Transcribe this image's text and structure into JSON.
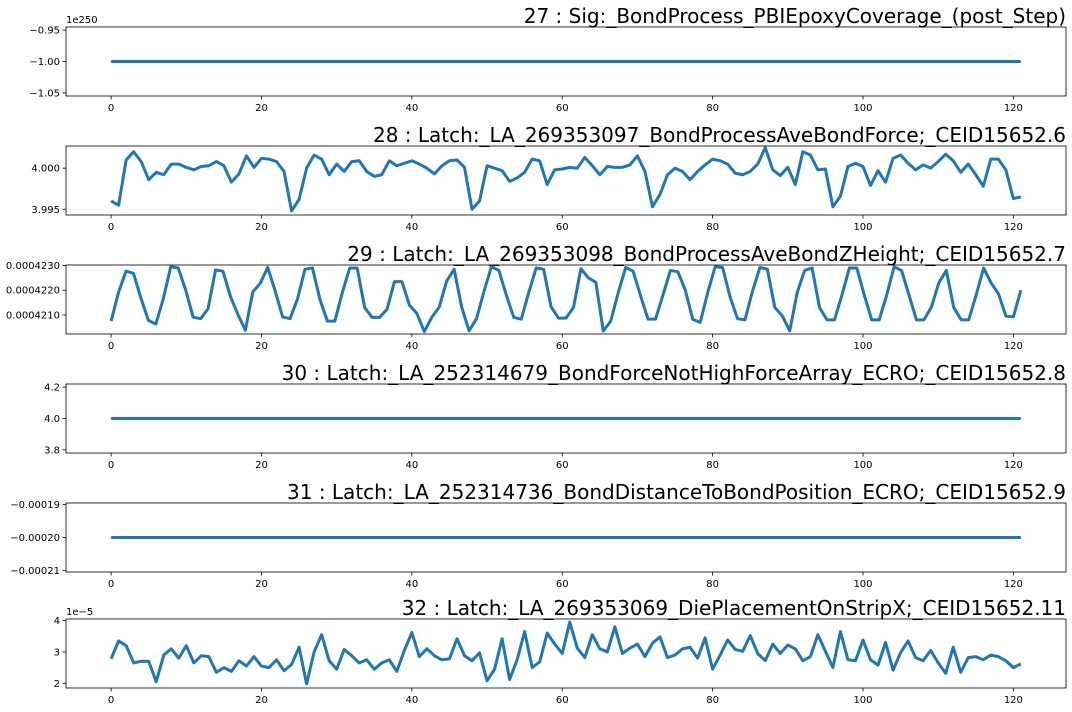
{
  "chart_data": [
    {
      "type": "line",
      "title": "27 : Sig:_BondProcess_PBIEpoxyCoverage_(post_Step)",
      "y_offset_text": "1e250",
      "ylim": [
        -1.055,
        -0.945
      ],
      "xlim": [
        -6,
        127
      ],
      "x_ticks": [
        0,
        20,
        40,
        60,
        80,
        100,
        120
      ],
      "y_ticks": [
        -1.05,
        -1.0,
        -0.95
      ],
      "y_tick_labels": [
        "−1.05",
        "−1.00",
        "−0.95"
      ],
      "x_range": [
        0,
        121
      ],
      "series": [
        {
          "values": [
            -1.0,
            -1.0
          ]
        }
      ]
    },
    {
      "type": "line",
      "title": "28 : Latch:_LA_269353097_BondProcessAveBondForce;_CEID15652.6",
      "y_offset_text": "",
      "ylim": [
        3.9943,
        4.0027
      ],
      "xlim": [
        -6,
        127
      ],
      "x_ticks": [
        0,
        20,
        40,
        60,
        80,
        100,
        120
      ],
      "y_ticks": [
        3.995,
        4.0
      ],
      "y_tick_labels": [
        "3.995",
        "4.000"
      ],
      "x_range": [
        0,
        121
      ],
      "series": [
        {
          "values": [
            3.996,
            3.9955,
            4.001,
            4.002,
            4.0008,
            3.9986,
            3.9995,
            3.9992,
            4.0005,
            4.0005,
            4.0001,
            3.9998,
            4.0002,
            4.0003,
            4.0008,
            4.0003,
            3.9983,
            3.9993,
            4.0015,
            4.0001,
            4.0012,
            4.0011,
            4.0008,
            3.9996,
            3.9948,
            3.9962,
            4.0,
            4.0016,
            4.0011,
            3.9992,
            4.0005,
            3.9996,
            4.0008,
            4.0009,
            3.9996,
            3.999,
            3.9992,
            4.0009,
            4.0003,
            4.0006,
            4.0009,
            4.0005,
            4.0,
            3.9993,
            4.0003,
            4.0009,
            4.001,
            4.0001,
            3.995,
            3.996,
            4.0003,
            4.0,
            3.9997,
            3.9984,
            3.9988,
            3.9995,
            4.0011,
            4.0009,
            3.998,
            3.9998,
            3.9999,
            4.0001,
            4.0,
            4.0013,
            4.0003,
            3.9992,
            4.0002,
            4.0001,
            4.0001,
            4.0004,
            4.0015,
            3.9996,
            3.9953,
            3.9968,
            3.9992,
            4.0,
            3.9996,
            3.9986,
            3.9996,
            4.0004,
            4.0011,
            4.0009,
            4.0005,
            3.9994,
            3.9992,
            3.9996,
            4.0005,
            4.0025,
            3.9998,
            3.9991,
            4.0001,
            3.998,
            4.002,
            4.0016,
            3.9998,
            3.9999,
            3.9953,
            3.9966,
            4.0002,
            4.0006,
            4.0002,
            3.9979,
            3.9997,
            3.9983,
            4.0012,
            4.0016,
            4.0006,
            3.9998,
            4.0004,
            4.0,
            4.0008,
            4.0017,
            4.0009,
            3.9995,
            4.0005,
            3.9992,
            3.9978,
            4.0011,
            4.0011,
            3.9998,
            3.9963,
            3.9965
          ]
        }
      ]
    },
    {
      "type": "line",
      "title": "29 : Latch:_LA_269353098_BondProcessAveBondZHeight;_CEID15652.7",
      "y_offset_text": "",
      "ylim": [
        0.00042023,
        0.00042302
      ],
      "xlim": [
        -6,
        127
      ],
      "x_ticks": [
        0,
        20,
        40,
        60,
        80,
        100,
        120
      ],
      "y_ticks": [
        0.000421,
        0.000422,
        0.000423
      ],
      "y_tick_labels": [
        "0.0004210",
        "0.0004220",
        "0.0004230"
      ],
      "x_range": [
        0,
        121
      ],
      "series": [
        {
          "values": [
            0.00042075,
            0.000421918,
            0.000422773,
            0.000422678,
            0.000421679,
            0.00042078,
            0.00042063,
            0.00042166,
            0.00042295,
            0.0004229,
            0.00042201,
            0.00042091,
            0.00042085,
            0.00042125,
            0.00042282,
            0.00042277,
            0.00042175,
            0.00042102,
            0.00042038,
            0.00042193,
            0.00042228,
            0.00042292,
            0.00042197,
            0.00042092,
            0.00042085,
            0.00042165,
            0.00042285,
            0.0004229,
            0.00042163,
            0.00042075,
            0.00042075,
            0.0004219,
            0.0004229,
            0.0004229,
            0.0004213,
            0.0004209,
            0.0004209,
            0.00042123,
            0.00042235,
            0.00042235,
            0.0004214,
            0.00042106,
            0.00042033,
            0.0004209,
            0.00042132,
            0.00042237,
            0.00042285,
            0.00042133,
            0.00042036,
            0.00042085,
            0.00042195,
            0.00042295,
            0.0004228,
            0.0004218,
            0.0004209,
            0.00042083,
            0.0004219,
            0.0004229,
            0.00042285,
            0.00042133,
            0.00042087,
            0.00042087,
            0.0004213,
            0.00042287,
            0.0004225,
            0.00042232,
            0.00042035,
            0.00042075,
            0.0004219,
            0.00042292,
            0.00042277,
            0.00042178,
            0.00042083,
            0.00042083,
            0.0004218,
            0.0004228,
            0.00042275,
            0.000422,
            0.00042082,
            0.0004207,
            0.0004219,
            0.00042295,
            0.00042292,
            0.00042173,
            0.00042085,
            0.0004208,
            0.00042195,
            0.00042292,
            0.00042285,
            0.0004213,
            0.00042097,
            0.00042035,
            0.0004219,
            0.0004228,
            0.0004229,
            0.0004213,
            0.0004208,
            0.0004208,
            0.0004218,
            0.0004229,
            0.0004229,
            0.0004218,
            0.0004208,
            0.0004208,
            0.0004218,
            0.00042295,
            0.0004228,
            0.0004218,
            0.0004208,
            0.0004208,
            0.00042132,
            0.0004223,
            0.0004228,
            0.0004213,
            0.0004208,
            0.0004208,
            0.0004218,
            0.0004229,
            0.0004223,
            0.00042185,
            0.00042095,
            0.00042093,
            0.000422
          ]
        }
      ]
    },
    {
      "type": "line",
      "title": "30 : Latch:_LA_252314679_BondForceNotHighForceArray_ECRO;_CEID15652.8",
      "y_offset_text": "",
      "ylim": [
        3.78,
        4.22
      ],
      "xlim": [
        -6,
        127
      ],
      "x_ticks": [
        0,
        20,
        40,
        60,
        80,
        100,
        120
      ],
      "y_ticks": [
        3.8,
        4.0,
        4.2
      ],
      "y_tick_labels": [
        "3.8",
        "4.0",
        "4.2"
      ],
      "x_range": [
        0,
        121
      ],
      "series": [
        {
          "values": [
            4.0,
            4.0
          ]
        }
      ]
    },
    {
      "type": "line",
      "title": "31 : Latch:_LA_252314736_BondDistanceToBondPosition_ECRO;_CEID15652.9",
      "y_offset_text": "",
      "ylim": [
        -0.0002105,
        -0.0001895
      ],
      "xlim": [
        -6,
        127
      ],
      "x_ticks": [
        0,
        20,
        40,
        60,
        80,
        100,
        120
      ],
      "y_ticks": [
        -0.00021,
        -0.0002,
        -0.00019
      ],
      "y_tick_labels": [
        "−0.00021",
        "−0.00020",
        "−0.00019"
      ],
      "x_range": [
        0,
        121
      ],
      "series": [
        {
          "values": [
            -0.0002,
            -0.0002
          ]
        }
      ]
    },
    {
      "type": "line",
      "title": "32 : Latch:_LA_269353069_DiePlacementOnStripX;_CEID15652.11",
      "y_offset_text": "1e−5",
      "ylim": [
        1.85,
        4.05
      ],
      "xlim": [
        -6,
        127
      ],
      "x_ticks": [
        0,
        20,
        40,
        60,
        80,
        100,
        120
      ],
      "y_ticks": [
        2,
        3,
        4
      ],
      "y_tick_labels": [
        "2",
        "3",
        "4"
      ],
      "x_range": [
        0,
        121
      ],
      "series": [
        {
          "values": [
            2.78,
            3.35,
            3.2,
            2.65,
            2.7,
            2.7,
            2.05,
            2.9,
            3.1,
            2.8,
            3.2,
            2.65,
            2.88,
            2.85,
            2.35,
            2.5,
            2.38,
            2.72,
            2.55,
            2.85,
            2.55,
            2.5,
            2.75,
            2.4,
            2.6,
            3.15,
            1.98,
            3.0,
            3.55,
            2.72,
            2.45,
            3.08,
            2.88,
            2.65,
            2.75,
            2.45,
            2.65,
            2.75,
            2.38,
            3.05,
            3.62,
            2.85,
            3.1,
            2.88,
            2.75,
            2.78,
            3.42,
            2.88,
            2.72,
            2.97,
            2.08,
            2.45,
            3.42,
            2.12,
            2.75,
            3.65,
            2.5,
            2.68,
            3.6,
            3.25,
            2.95,
            3.95,
            3.12,
            2.82,
            3.55,
            3.1,
            3.0,
            3.8,
            2.95,
            3.12,
            3.25,
            2.85,
            3.28,
            3.48,
            2.82,
            2.9,
            3.1,
            3.15,
            2.8,
            3.45,
            2.45,
            2.9,
            3.38,
            3.08,
            3.02,
            3.52,
            2.95,
            2.72,
            3.25,
            2.95,
            3.22,
            3.1,
            2.72,
            2.85,
            3.55,
            3.02,
            2.5,
            3.65,
            2.75,
            2.72,
            3.38,
            2.75,
            2.58,
            3.3,
            2.42,
            2.98,
            3.35,
            2.82,
            2.72,
            3.05,
            2.65,
            2.32,
            3.15,
            2.35,
            2.82,
            2.85,
            2.75,
            2.9,
            2.85,
            2.72,
            2.5,
            2.62
          ]
        }
      ]
    }
  ],
  "colors": {
    "series": "#1f77b4"
  }
}
